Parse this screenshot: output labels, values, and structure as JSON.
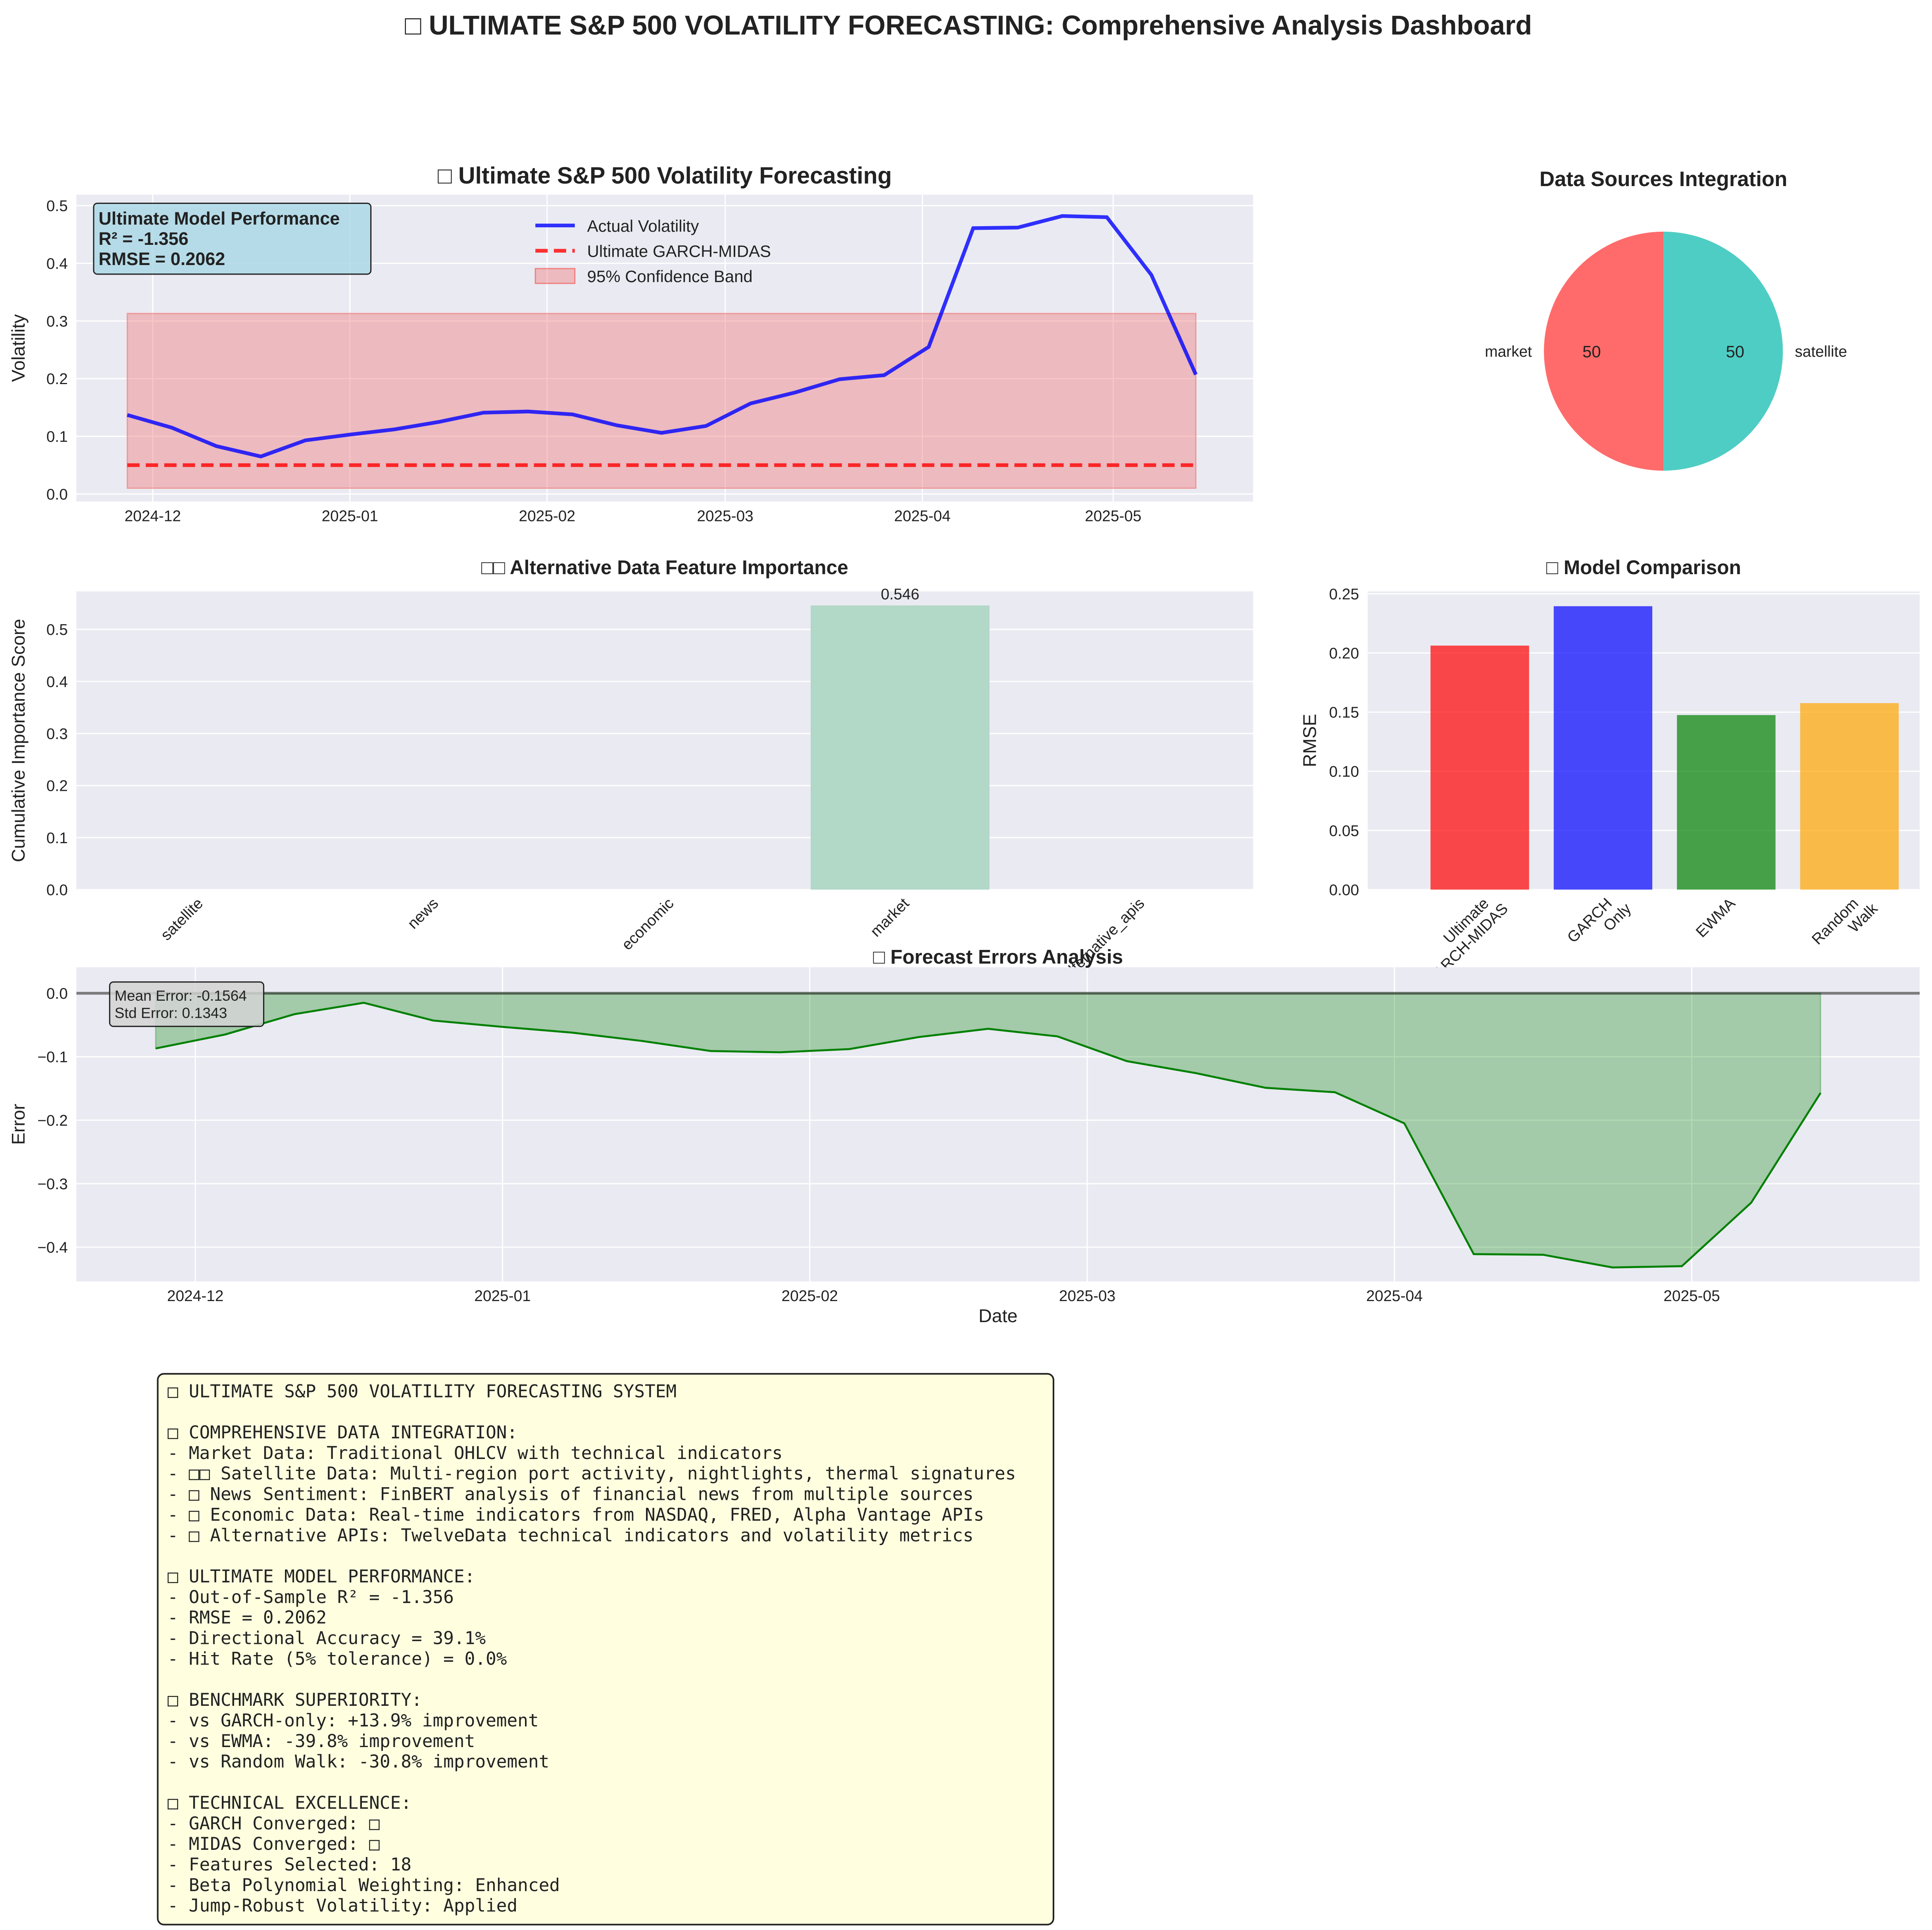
{
  "title": "□ ULTIMATE S&P 500 VOLATILITY FORECASTING: Comprehensive Analysis Dashboard",
  "chart_data": [
    {
      "type": "line",
      "title": "□ Ultimate S&P 500 Volatility Forecasting",
      "ylabel": "Volatility",
      "x": [
        "2024-11-27",
        "2024-12-04",
        "2024-12-11",
        "2024-12-18",
        "2024-12-25",
        "2025-01-01",
        "2025-01-08",
        "2025-01-15",
        "2025-01-22",
        "2025-01-29",
        "2025-02-05",
        "2025-02-12",
        "2025-02-19",
        "2025-02-26",
        "2025-03-05",
        "2025-03-12",
        "2025-03-19",
        "2025-03-26",
        "2025-04-02",
        "2025-04-09",
        "2025-04-16",
        "2025-04-23",
        "2025-04-30",
        "2025-05-07",
        "2025-05-14"
      ],
      "series": [
        {
          "name": "Actual Volatility",
          "color": "#0000ff",
          "style": "solid",
          "values": [
            0.137,
            0.115,
            0.083,
            0.065,
            0.093,
            0.103,
            0.112,
            0.125,
            0.141,
            0.143,
            0.138,
            0.119,
            0.106,
            0.118,
            0.157,
            0.176,
            0.199,
            0.206,
            0.255,
            0.461,
            0.462,
            0.482,
            0.48,
            0.38,
            0.207
          ]
        },
        {
          "name": "Ultimate GARCH-MIDAS",
          "color": "#ff0000",
          "style": "dashed",
          "values": [
            0.05,
            0.05,
            0.05,
            0.05,
            0.05,
            0.05,
            0.05,
            0.05,
            0.05,
            0.05,
            0.05,
            0.05,
            0.05,
            0.05,
            0.05,
            0.05,
            0.05,
            0.05,
            0.05,
            0.05,
            0.05,
            0.05,
            0.05,
            0.05,
            0.05
          ]
        }
      ],
      "band": {
        "name": "95% Confidence Band",
        "color": "#f08080",
        "lower": [
          0.01,
          0.01,
          0.01,
          0.01,
          0.01,
          0.01,
          0.01,
          0.01,
          0.01,
          0.01,
          0.01,
          0.01,
          0.01,
          0.01,
          0.01,
          0.01,
          0.01,
          0.01,
          0.01,
          0.01,
          0.01,
          0.01,
          0.01,
          0.01,
          0.01
        ],
        "upper": [
          0.313,
          0.313,
          0.313,
          0.313,
          0.313,
          0.313,
          0.313,
          0.313,
          0.313,
          0.313,
          0.313,
          0.313,
          0.313,
          0.313,
          0.313,
          0.313,
          0.313,
          0.313,
          0.313,
          0.313,
          0.313,
          0.313,
          0.313,
          0.313,
          0.313
        ]
      },
      "annotation": [
        "Ultimate Model Performance",
        "R² = -1.356",
        "RMSE = 0.2062"
      ],
      "xlim": [
        "2024-11-19",
        "2025-05-23"
      ],
      "xticks": [
        {
          "value": "2024-12-01",
          "label": "2024-12"
        },
        {
          "value": "2025-01-01",
          "label": "2025-01"
        },
        {
          "value": "2025-02-01",
          "label": "2025-02"
        },
        {
          "value": "2025-03-01",
          "label": "2025-03"
        },
        {
          "value": "2025-04-01",
          "label": "2025-04"
        },
        {
          "value": "2025-05-01",
          "label": "2025-05"
        }
      ],
      "ylim": [
        -0.013,
        0.519
      ],
      "yticks": [
        {
          "value": 0,
          "label": "0.0"
        },
        0.1,
        0.2,
        0.3,
        0.4,
        0.5
      ],
      "grid": true,
      "legend": "upper center"
    },
    {
      "type": "pie",
      "title": "Data Sources Integration",
      "categories": [
        "market",
        "satellite"
      ],
      "values": [
        50,
        50
      ],
      "colors": [
        "#ff6b6b",
        "#4ecdc4"
      ]
    },
    {
      "type": "bar",
      "title": "□□ Alternative Data Feature Importance",
      "ylabel": "Cumulative Importance Score",
      "categories": [
        "satellite",
        "news",
        "economic",
        "market",
        "alternative_apis"
      ],
      "values": [
        0,
        0,
        0,
        0.546,
        0
      ],
      "color": "#b2d8c8",
      "ylim": [
        0,
        0.573
      ],
      "yticks": [
        {
          "value": 0,
          "label": "0.0"
        },
        0.1,
        0.2,
        0.3,
        0.4,
        0.5
      ],
      "grid": true
    },
    {
      "type": "bar",
      "title": "□ Model Comparison",
      "ylabel": "RMSE",
      "categories": [
        "Ultimate\nGARCH-MIDAS",
        "GARCH\nOnly",
        "EWMA",
        "Random\nWalk"
      ],
      "values": [
        0.2062,
        0.2395,
        0.1475,
        0.1576
      ],
      "colors": [
        "#ff0000",
        "#0000ff",
        "#008000",
        "#ffa500"
      ],
      "ylim": [
        0,
        0.252
      ],
      "yticks": [
        {
          "value": 0,
          "label": "0.00"
        },
        {
          "value": 0.05,
          "label": "0.05"
        },
        {
          "value": 0.1,
          "label": "0.10"
        },
        {
          "value": 0.15,
          "label": "0.15"
        },
        {
          "value": 0.2,
          "label": "0.20"
        },
        {
          "value": 0.25,
          "label": "0.25"
        }
      ],
      "grid": true
    },
    {
      "type": "area",
      "title": "□ Forecast Errors Analysis",
      "xlabel": "Date",
      "ylabel": "Error",
      "x": [
        "2024-11-27",
        "2024-12-04",
        "2024-12-11",
        "2024-12-18",
        "2024-12-25",
        "2025-01-01",
        "2025-01-08",
        "2025-01-15",
        "2025-01-22",
        "2025-01-29",
        "2025-02-05",
        "2025-02-12",
        "2025-02-19",
        "2025-02-26",
        "2025-03-05",
        "2025-03-12",
        "2025-03-19",
        "2025-03-26",
        "2025-04-02",
        "2025-04-09",
        "2025-04-16",
        "2025-04-23",
        "2025-04-30",
        "2025-05-07",
        "2025-05-14"
      ],
      "values": [
        -0.087,
        -0.065,
        -0.033,
        -0.015,
        -0.043,
        -0.053,
        -0.062,
        -0.075,
        -0.091,
        -0.093,
        -0.088,
        -0.069,
        -0.056,
        -0.068,
        -0.107,
        -0.126,
        -0.149,
        -0.156,
        -0.205,
        -0.411,
        -0.412,
        -0.432,
        -0.43,
        -0.33,
        -0.157
      ],
      "color": "#008000",
      "hline": 0,
      "annotation": [
        "Mean Error: -0.1564",
        "Std Error: 0.1343"
      ],
      "xlim": [
        "2024-11-19",
        "2025-05-24"
      ],
      "xticks": [
        {
          "value": "2024-12-01",
          "label": "2024-12"
        },
        {
          "value": "2025-01-01",
          "label": "2025-01"
        },
        {
          "value": "2025-02-01",
          "label": "2025-02"
        },
        {
          "value": "2025-03-01",
          "label": "2025-03"
        },
        {
          "value": "2025-04-01",
          "label": "2025-04"
        },
        {
          "value": "2025-05-01",
          "label": "2025-05"
        }
      ],
      "ylim": [
        -0.454,
        0.041
      ],
      "yticks": [
        {
          "value": 0,
          "label": "0.0"
        },
        {
          "value": -0.1,
          "label": "−0.1"
        },
        {
          "value": -0.2,
          "label": "−0.2"
        },
        {
          "value": -0.3,
          "label": "−0.3"
        },
        {
          "value": -0.4,
          "label": "−0.4"
        }
      ],
      "grid": true
    }
  ],
  "text_panel": {
    "sections": [
      [
        "□ ULTIMATE S&P 500 VOLATILITY FORECASTING SYSTEM"
      ],
      [
        "□ COMPREHENSIVE DATA INTEGRATION:",
        "- Market Data: Traditional OHLCV with technical indicators",
        "- □□ Satellite Data: Multi-region port activity, nightlights, thermal signatures",
        "- □ News Sentiment: FinBERT analysis of financial news from multiple sources",
        "- □ Economic Data: Real-time indicators from NASDAQ, FRED, Alpha Vantage APIs",
        "- □ Alternative APIs: TwelveData technical indicators and volatility metrics"
      ],
      [
        "□ ULTIMATE MODEL PERFORMANCE:",
        "- Out-of-Sample R² = -1.356",
        "- RMSE = 0.2062",
        "- Directional Accuracy = 39.1%",
        "- Hit Rate (5% tolerance) = 0.0%"
      ],
      [
        "□ BENCHMARK SUPERIORITY:",
        "- vs GARCH-only: +13.9% improvement",
        "- vs EWMA: -39.8% improvement",
        "- vs Random Walk: -30.8% improvement"
      ],
      [
        "□ TECHNICAL EXCELLENCE:",
        "- GARCH Converged: □",
        "- MIDAS Converged: □",
        "- Features Selected: 18",
        "- Beta Polynomial Weighting: Enhanced",
        "- Jump-Robust Volatility: Applied"
      ]
    ]
  }
}
